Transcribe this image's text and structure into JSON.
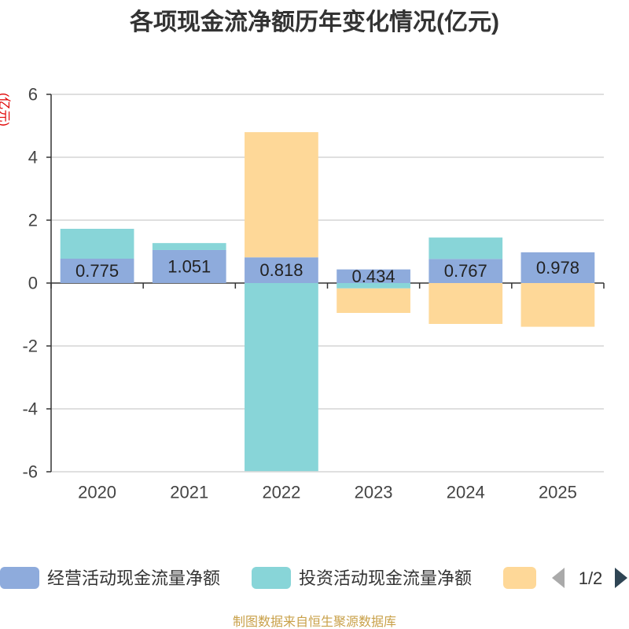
{
  "footer": "制图数据来自恒生聚源数据库",
  "legend": {
    "page": "1/2"
  },
  "chart_data": {
    "type": "bar",
    "stacked": true,
    "title": "各项现金流净额历年变化情况(亿元)",
    "xlabel": "",
    "ylabel": "(亿元)",
    "categories": [
      "2020",
      "2021",
      "2022",
      "2023",
      "2024",
      "2025"
    ],
    "ylim": [
      -6,
      6
    ],
    "yticks": [
      6,
      4,
      2,
      0,
      -2,
      -4,
      -6
    ],
    "grid": true,
    "legend_position": "bottom",
    "series": [
      {
        "name": "经营活动现金流量净额",
        "color": "#8eabdc",
        "show_labels": true,
        "values": [
          0.775,
          1.051,
          0.818,
          0.434,
          0.767,
          0.978
        ]
      },
      {
        "name": "投资活动现金流量净额",
        "color": "#88d5d8",
        "show_labels": false,
        "values": [
          0.95,
          0.22,
          -5.98,
          -0.17,
          0.68,
          0
        ]
      },
      {
        "color": "#fed898",
        "show_labels": false,
        "values": [
          0,
          0,
          3.98,
          -0.78,
          -1.3,
          -1.39
        ]
      }
    ]
  }
}
